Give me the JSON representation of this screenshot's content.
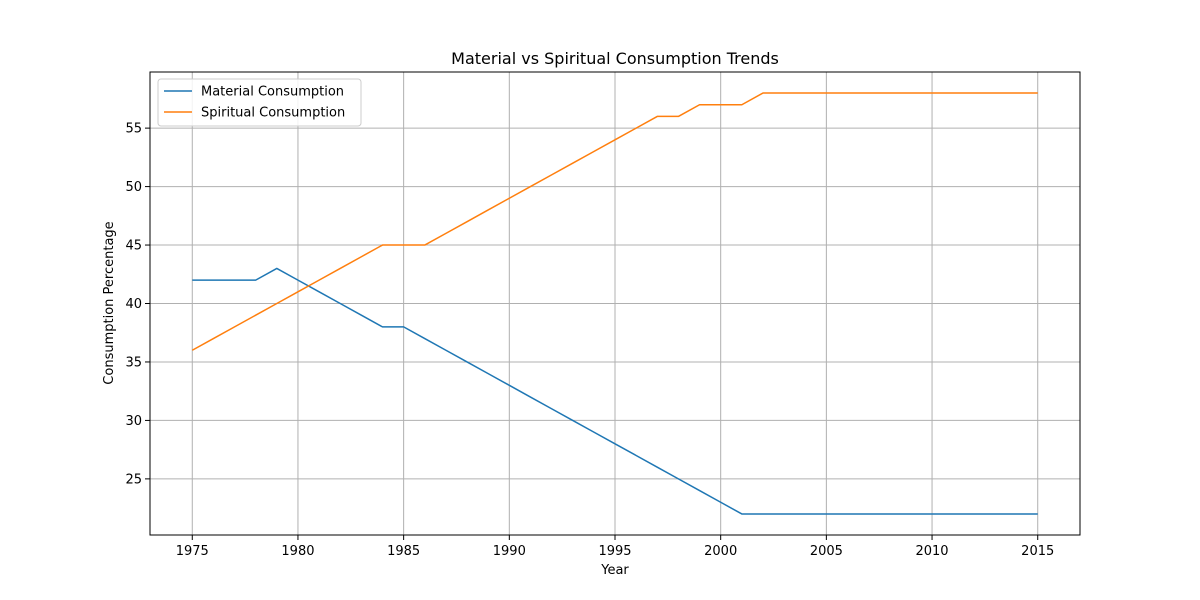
{
  "chart_data": {
    "type": "line",
    "title": "Material vs Spiritual Consumption Trends",
    "xlabel": "Year",
    "ylabel": "Consumption Percentage",
    "xlim": [
      1973,
      2017
    ],
    "ylim": [
      20.2,
      59.8
    ],
    "x_ticks": [
      1975,
      1980,
      1985,
      1990,
      1995,
      2000,
      2005,
      2010,
      2015
    ],
    "y_ticks": [
      25,
      30,
      35,
      40,
      45,
      50,
      55
    ],
    "grid": true,
    "legend_position": "upper left",
    "x": [
      1975,
      1976,
      1977,
      1978,
      1979,
      1980,
      1981,
      1982,
      1983,
      1984,
      1985,
      1986,
      1987,
      1988,
      1989,
      1990,
      1991,
      1992,
      1993,
      1994,
      1995,
      1996,
      1997,
      1998,
      1999,
      2000,
      2001,
      2002,
      2003,
      2004,
      2005,
      2006,
      2007,
      2008,
      2009,
      2010,
      2011,
      2012,
      2013,
      2014,
      2015
    ],
    "series": [
      {
        "name": "Material Consumption",
        "color": "#1f77b4",
        "values": [
          42,
          42,
          42,
          42,
          43,
          42,
          41,
          40,
          39,
          38,
          38,
          37,
          36,
          35,
          34,
          33,
          32,
          31,
          30,
          29,
          28,
          27,
          26,
          25,
          24,
          23,
          22,
          22,
          22,
          22,
          22,
          22,
          22,
          22,
          22,
          22,
          22,
          22,
          22,
          22,
          22
        ]
      },
      {
        "name": "Spiritual Consumption",
        "color": "#ff7f0e",
        "values": [
          36,
          37,
          38,
          39,
          40,
          41,
          42,
          43,
          44,
          45,
          45,
          45,
          46,
          47,
          48,
          49,
          50,
          51,
          52,
          53,
          54,
          55,
          56,
          56,
          57,
          57,
          57,
          58,
          58,
          58,
          58,
          58,
          58,
          58,
          58,
          58,
          58,
          58,
          58,
          58,
          58
        ]
      }
    ]
  }
}
